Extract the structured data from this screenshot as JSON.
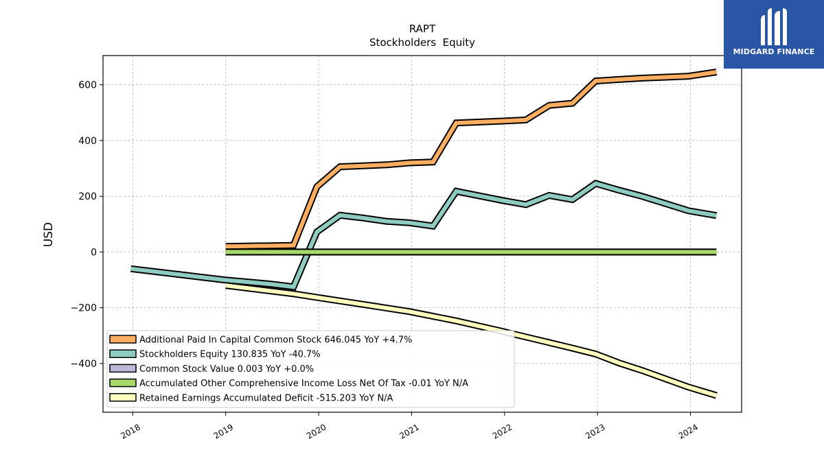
{
  "chart_data": {
    "type": "line",
    "title": "RAPT",
    "subtitle": "Stockholders  Equity",
    "ylabel": "USD",
    "xlabel": "",
    "ylim": [
      -575,
      705
    ],
    "xlim": [
      2017.68,
      2024.55
    ],
    "yticks": [
      600,
      400,
      200,
      0,
      -200,
      -400
    ],
    "ytick_labels": [
      "600",
      "400",
      "200",
      "0",
      "−200",
      "−400"
    ],
    "xticks": [
      2018,
      2019,
      2020,
      2021,
      2022,
      2023,
      2024
    ],
    "xtick_labels": [
      "2018",
      "2019",
      "2020",
      "2021",
      "2022",
      "2023",
      "2024"
    ],
    "grid": true,
    "legend_position": "lower-left",
    "series": [
      {
        "name": "Additional Paid In Capital Common Stock",
        "legend": "Additional Paid In Capital Common Stock  646.045 YoY +4.7%",
        "color": "#fdae61",
        "x": [
          2019.0,
          2019.73,
          2019.98,
          2020.23,
          2020.73,
          2020.98,
          2021.23,
          2021.48,
          2021.98,
          2022.23,
          2022.48,
          2022.73,
          2022.98,
          2023.23,
          2023.48,
          2023.98,
          2024.28
        ],
        "y": [
          20,
          24,
          234,
          306,
          313,
          320,
          323,
          463,
          470,
          474,
          526,
          534,
          614,
          619,
          624,
          631,
          646
        ]
      },
      {
        "name": "Stockholders Equity",
        "legend": "Stockholders Equity  130.835 YoY -40.7%",
        "color": "#8ecbc0",
        "x": [
          2017.98,
          2018.48,
          2018.98,
          2019.48,
          2019.73,
          2019.98,
          2020.23,
          2020.48,
          2020.73,
          2020.98,
          2021.23,
          2021.48,
          2021.98,
          2022.23,
          2022.48,
          2022.73,
          2022.98,
          2023.23,
          2023.48,
          2023.98,
          2024.28
        ],
        "y": [
          -60,
          -80,
          -100,
          -115,
          -125,
          72,
          132,
          122,
          110,
          105,
          93,
          218,
          185,
          170,
          203,
          188,
          246,
          222,
          200,
          148,
          131
        ]
      },
      {
        "name": "Common Stock Value",
        "legend": "Common Stock Value  0.003 YoY +0.0%",
        "color": "#bcb8d8",
        "x": [
          2019.0,
          2024.28
        ],
        "y": [
          0.003,
          0.003
        ]
      },
      {
        "name": "Accumulated Other Comprehensive Income Loss Net Of Tax",
        "legend": "Accumulated Other Comprehensive Income Loss Net Of Tax  -0.01 YoY N/A",
        "color": "#a6d96a",
        "x": [
          2019.0,
          2024.28
        ],
        "y": [
          0,
          0
        ]
      },
      {
        "name": "Retained Earnings Accumulated Deficit",
        "legend": "Retained Earnings Accumulated Deficit  -515.203 YoY N/A",
        "color": "#ffffbf",
        "x": [
          2019.0,
          2019.73,
          2019.98,
          2020.48,
          2020.73,
          2020.98,
          2021.48,
          2021.98,
          2022.23,
          2022.48,
          2022.73,
          2022.98,
          2023.23,
          2023.48,
          2023.98,
          2024.28
        ],
        "y": [
          -120,
          -150,
          -163,
          -188,
          -201,
          -214,
          -247,
          -285,
          -305,
          -325,
          -345,
          -366,
          -398,
          -425,
          -485,
          -515
        ]
      }
    ]
  },
  "logo": {
    "text": "MIDGARD FINANCE",
    "color": "#2a56a6"
  }
}
